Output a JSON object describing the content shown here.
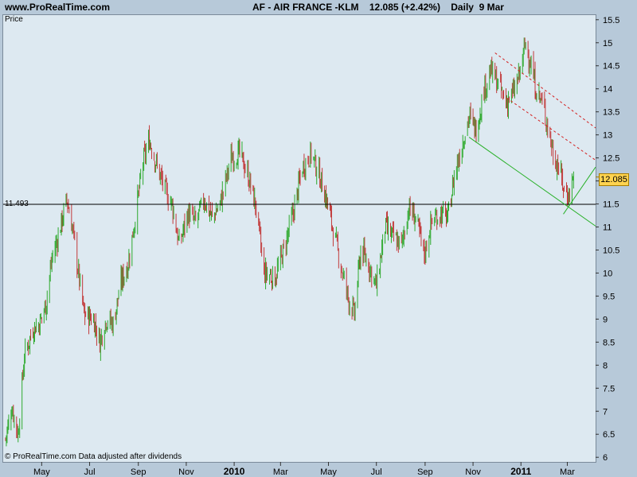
{
  "header": {
    "site": "www.ProRealTime.com",
    "quote": "AF - AIR FRANCE -KLM    12.085 (+2.42%)    Daily  9 Mar"
  },
  "plot_label": "Price",
  "footer_note": "© ProRealTime.com  Data adjusted after dividends",
  "colors": {
    "up": "#2eaa2e",
    "down": "#c23a3a",
    "trend": "#27b027",
    "channel": "#d42020",
    "price_tag": "#ffd34f"
  },
  "chart_data": {
    "type": "candlestick",
    "title": "",
    "xlabel": "",
    "ylabel": "Price",
    "ylim": [
      5.9,
      15.6
    ],
    "yticks": [
      6,
      6.5,
      7,
      7.5,
      8,
      8.5,
      9,
      9.5,
      10,
      10.5,
      11,
      11.5,
      12,
      12.5,
      13,
      13.5,
      14,
      14.5,
      15,
      15.5
    ],
    "xlim": [
      "2009-03-13",
      "2011-04-06"
    ],
    "x_ticks": [
      {
        "date": "2009-05-01",
        "label": "May"
      },
      {
        "date": "2009-07-01",
        "label": "Jul"
      },
      {
        "date": "2009-09-01",
        "label": "Sep"
      },
      {
        "date": "2009-11-01",
        "label": "Nov"
      },
      {
        "date": "2010-01-01",
        "label": "2010",
        "bold": true
      },
      {
        "date": "2010-03-01",
        "label": "Mar"
      },
      {
        "date": "2010-05-01",
        "label": "May"
      },
      {
        "date": "2010-07-01",
        "label": "Jul"
      },
      {
        "date": "2010-09-01",
        "label": "Sep"
      },
      {
        "date": "2010-11-01",
        "label": "Nov"
      },
      {
        "date": "2011-01-01",
        "label": "2011",
        "bold": true
      },
      {
        "date": "2011-03-01",
        "label": "Mar"
      }
    ],
    "series": [
      {
        "values": [
          {
            "date": "2009-03-16",
            "close": 6.4
          },
          {
            "date": "2009-03-24",
            "close": 7.1
          },
          {
            "date": "2009-04-01",
            "close": 6.5
          },
          {
            "date": "2009-04-09",
            "close": 8.2
          },
          {
            "date": "2009-04-20",
            "close": 8.8
          },
          {
            "date": "2009-04-28",
            "close": 8.9
          },
          {
            "date": "2009-05-06",
            "close": 9.3
          },
          {
            "date": "2009-05-14",
            "close": 10.3
          },
          {
            "date": "2009-05-22",
            "close": 10.8
          },
          {
            "date": "2009-06-02",
            "close": 11.6
          },
          {
            "date": "2009-06-09",
            "close": 11.0
          },
          {
            "date": "2009-06-16",
            "close": 10.1
          },
          {
            "date": "2009-06-24",
            "close": 9.1
          },
          {
            "date": "2009-07-06",
            "close": 9.0
          },
          {
            "date": "2009-07-14",
            "close": 8.5
          },
          {
            "date": "2009-07-22",
            "close": 9.0
          },
          {
            "date": "2009-07-31",
            "close": 8.9
          },
          {
            "date": "2009-08-10",
            "close": 9.8
          },
          {
            "date": "2009-08-19",
            "close": 10.2
          },
          {
            "date": "2009-08-28",
            "close": 11.2
          },
          {
            "date": "2009-09-07",
            "close": 12.4
          },
          {
            "date": "2009-09-15",
            "close": 12.9
          },
          {
            "date": "2009-09-25",
            "close": 12.3
          },
          {
            "date": "2009-10-05",
            "close": 11.8
          },
          {
            "date": "2009-10-14",
            "close": 11.5
          },
          {
            "date": "2009-10-23",
            "close": 10.6
          },
          {
            "date": "2009-11-03",
            "close": 11.3
          },
          {
            "date": "2009-11-13",
            "close": 11.1
          },
          {
            "date": "2009-11-24",
            "close": 11.6
          },
          {
            "date": "2009-12-04",
            "close": 11.2
          },
          {
            "date": "2009-12-14",
            "close": 11.5
          },
          {
            "date": "2009-12-28",
            "close": 12.5
          },
          {
            "date": "2010-01-08",
            "close": 12.6
          },
          {
            "date": "2010-01-19",
            "close": 12.1
          },
          {
            "date": "2010-01-29",
            "close": 11.4
          },
          {
            "date": "2010-02-08",
            "close": 10.0
          },
          {
            "date": "2010-02-22",
            "close": 9.9
          },
          {
            "date": "2010-03-05",
            "close": 10.5
          },
          {
            "date": "2010-03-17",
            "close": 11.3
          },
          {
            "date": "2010-03-29",
            "close": 12.3
          },
          {
            "date": "2010-04-09",
            "close": 12.6
          },
          {
            "date": "2010-04-20",
            "close": 12.1
          },
          {
            "date": "2010-04-30",
            "close": 11.5
          },
          {
            "date": "2010-05-10",
            "close": 10.7
          },
          {
            "date": "2010-05-19",
            "close": 10.0
          },
          {
            "date": "2010-05-27",
            "close": 9.4
          },
          {
            "date": "2010-06-03",
            "close": 9.1
          },
          {
            "date": "2010-06-11",
            "close": 10.5
          },
          {
            "date": "2010-06-21",
            "close": 10.2
          },
          {
            "date": "2010-07-01",
            "close": 9.7
          },
          {
            "date": "2010-07-12",
            "close": 11.0
          },
          {
            "date": "2010-07-21",
            "close": 10.8
          },
          {
            "date": "2010-08-02",
            "close": 10.6
          },
          {
            "date": "2010-08-11",
            "close": 11.4
          },
          {
            "date": "2010-08-20",
            "close": 11.2
          },
          {
            "date": "2010-08-31",
            "close": 10.4
          },
          {
            "date": "2010-09-09",
            "close": 11.1
          },
          {
            "date": "2010-09-20",
            "close": 11.3
          },
          {
            "date": "2010-09-30",
            "close": 11.2
          },
          {
            "date": "2010-10-08",
            "close": 12.1
          },
          {
            "date": "2010-10-18",
            "close": 12.8
          },
          {
            "date": "2010-10-27",
            "close": 13.4
          },
          {
            "date": "2010-11-05",
            "close": 13.1
          },
          {
            "date": "2010-11-15",
            "close": 14.0
          },
          {
            "date": "2010-11-24",
            "close": 14.4
          },
          {
            "date": "2010-12-03",
            "close": 14.1
          },
          {
            "date": "2010-12-13",
            "close": 13.7
          },
          {
            "date": "2010-12-22",
            "close": 13.9
          },
          {
            "date": "2010-12-30",
            "close": 14.3
          },
          {
            "date": "2011-01-07",
            "close": 15.0
          },
          {
            "date": "2011-01-14",
            "close": 14.5
          },
          {
            "date": "2011-01-20",
            "close": 14.0
          },
          {
            "date": "2011-01-28",
            "close": 13.7
          },
          {
            "date": "2011-02-04",
            "close": 13.2
          },
          {
            "date": "2011-02-11",
            "close": 12.6
          },
          {
            "date": "2011-02-18",
            "close": 12.3
          },
          {
            "date": "2011-02-25",
            "close": 11.8
          },
          {
            "date": "2011-03-03",
            "close": 11.7
          },
          {
            "date": "2011-03-09",
            "close": 12.085
          }
        ]
      }
    ],
    "reference_line": {
      "value": 11.493,
      "label": "11.493"
    },
    "last_price": {
      "value": 12.085,
      "label": "12.085"
    },
    "trendlines": [
      {
        "style": "solid",
        "color": "green",
        "points": [
          {
            "date": "2010-10-27",
            "value": 12.95
          },
          {
            "date": "2011-04-06",
            "value": 11.02
          }
        ]
      },
      {
        "style": "solid",
        "color": "green",
        "points": [
          {
            "date": "2011-02-24",
            "value": 11.28
          },
          {
            "date": "2011-04-06",
            "value": 12.3
          }
        ]
      },
      {
        "style": "dotted",
        "color": "red",
        "points": [
          {
            "date": "2010-11-29",
            "value": 14.78
          },
          {
            "date": "2011-04-06",
            "value": 13.15
          }
        ]
      },
      {
        "style": "dotted",
        "color": "red",
        "points": [
          {
            "date": "2010-12-14",
            "value": 13.8
          },
          {
            "date": "2011-04-06",
            "value": 12.45
          }
        ]
      }
    ]
  }
}
